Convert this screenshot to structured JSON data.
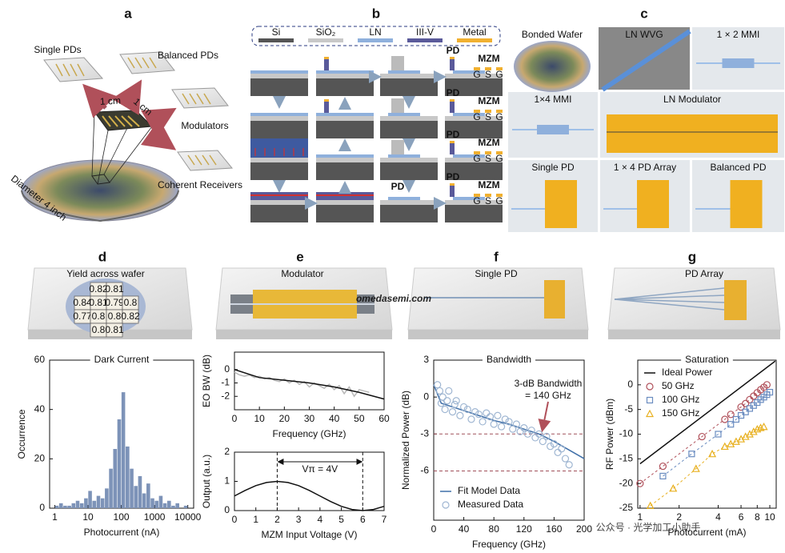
{
  "panel_labels": [
    "a",
    "b",
    "c",
    "d",
    "e",
    "f",
    "g"
  ],
  "a": {
    "labels": [
      "Single PDs",
      "Balanced PDs",
      "1 cm",
      "1 cm",
      "Modulators",
      "Coherent Receivers",
      "Diameter 4 inch"
    ]
  },
  "b": {
    "legend": [
      "Si",
      "SiO₂",
      "LN",
      "III-V",
      "Metal"
    ],
    "legend_colors": [
      "#555555",
      "#c8c8c8",
      "#8fb0dc",
      "#5a5a9a",
      "#f0b030"
    ],
    "device_labels": [
      "PD",
      "MZM"
    ],
    "electrode": [
      "G",
      "S",
      "G"
    ]
  },
  "c": {
    "tiles": [
      "Bonded Wafer",
      "LN WVG",
      "1 × 2 MMI",
      "1×4 MMI",
      "LN Modulator",
      "Single PD",
      "1 × 4 PD Array",
      "Balanced PD"
    ]
  },
  "d": {
    "title": "Yield across wafer",
    "yield": [
      0.82,
      0.81,
      0.84,
      0.81,
      0.79,
      0.8,
      0.77,
      0.8,
      0.8,
      0.82,
      0.8,
      0.81
    ]
  },
  "e": {
    "title": "Modulator"
  },
  "f": {
    "title": "Single PD"
  },
  "g": {
    "title": "PD Array"
  },
  "watermarks": [
    "omedasemi.com",
    "公众号 · 光学加工小助手"
  ],
  "chart_data": [
    {
      "type": "histogram",
      "title": "Dark Current",
      "x_label": "Photocurrent (nA)",
      "y_label": "Occurrence",
      "xscale": "log",
      "xlim": [
        0.7,
        15000
      ],
      "xticks": [
        1,
        10,
        100,
        1000,
        10000
      ],
      "ylim": [
        0,
        60
      ],
      "yticks": [
        0,
        20,
        40,
        60
      ],
      "color": "#7d93b8",
      "bins": [
        1,
        1.33,
        1.78,
        2.37,
        3.16,
        4.22,
        5.62,
        7.5,
        10,
        13.3,
        17.8,
        23.7,
        31.6,
        42.2,
        56.2,
        75,
        100,
        133,
        178,
        237,
        316,
        422,
        562,
        750,
        1000,
        1334,
        1778,
        2371,
        3162,
        4217,
        5623,
        7499,
        10000
      ],
      "values": [
        1,
        2,
        1,
        1,
        2,
        3,
        2,
        4,
        7,
        3,
        5,
        4,
        8,
        16,
        24,
        36,
        47,
        25,
        16,
        9,
        13,
        6,
        10,
        4,
        3,
        5,
        2,
        3,
        1,
        2,
        0,
        1
      ]
    },
    {
      "type": "line",
      "x_label": "Frequency (GHz)",
      "y_label": "EO BW (dB)",
      "xlim": [
        0,
        60
      ],
      "xticks": [
        0,
        10,
        20,
        30,
        40,
        50,
        60
      ],
      "ylim": [
        -3,
        1.3
      ],
      "yticks": [
        0,
        -1,
        -2
      ],
      "series": [
        {
          "color": "#b8b8b8",
          "x": [
            0,
            2,
            4,
            6,
            8,
            10,
            12,
            14,
            16,
            18,
            20,
            22,
            24,
            26,
            28,
            30,
            32,
            34,
            36,
            38,
            40,
            42,
            44,
            46,
            48,
            50,
            52,
            54
          ],
          "values": [
            -0.2,
            -0.4,
            -0.5,
            -0.4,
            -0.6,
            -0.5,
            -0.7,
            -0.6,
            -0.8,
            -0.9,
            -0.7,
            -1.0,
            -0.8,
            -1.1,
            -0.9,
            -1.3,
            -1.0,
            -1.2,
            -1.4,
            -1.1,
            -1.5,
            -1.2,
            -1.8,
            -1.3,
            -2.0,
            -1.5,
            -1.6,
            -1.7
          ]
        },
        {
          "color": "#111111",
          "x": [
            0,
            10,
            20,
            30,
            40,
            50,
            60
          ],
          "values": [
            0,
            -0.6,
            -0.8,
            -1.0,
            -1.3,
            -1.7,
            -2.2
          ]
        }
      ]
    },
    {
      "type": "line",
      "x_label": "MZM Input Voltage (V)",
      "y_label": "Output (a.u.)",
      "xlim": [
        0,
        7
      ],
      "xticks": [
        0,
        1,
        2,
        3,
        4,
        5,
        6,
        7
      ],
      "ylim": [
        0,
        2
      ],
      "yticks": [
        0,
        1,
        2
      ],
      "vlines": [
        2,
        6
      ],
      "annotation": [
        "Vπ = 4V"
      ],
      "series": [
        {
          "color": "#111111",
          "x": [
            0,
            0.5,
            1,
            1.5,
            2,
            2.5,
            3,
            3.5,
            4,
            4.5,
            5,
            5.5,
            6,
            6.5,
            7
          ],
          "values": [
            0.5,
            0.691,
            0.854,
            0.962,
            1,
            0.962,
            0.854,
            0.691,
            0.5,
            0.309,
            0.146,
            0.038,
            0,
            0.038,
            0.146
          ]
        }
      ]
    },
    {
      "type": "scatter",
      "title": "Bandwidth",
      "x_label": "Frequency (GHz)",
      "y_label": "Normalized Power (dB)",
      "xlim": [
        0,
        200
      ],
      "xticks": [
        0,
        40,
        80,
        120,
        160,
        200
      ],
      "ylim": [
        -10,
        3
      ],
      "yticks": [
        3,
        0,
        -3,
        -6
      ],
      "hlines": [
        -3,
        -6
      ],
      "annotation": [
        "3-dB Bandwidth",
        "= 140 GHz"
      ],
      "legend": "lower left",
      "series": [
        {
          "name": "Fit Model Data",
          "color": "#3f6fa8",
          "mode": "line",
          "x": [
            0,
            10,
            20,
            40,
            60,
            80,
            100,
            120,
            140,
            160,
            180,
            200
          ],
          "values": [
            1,
            -0.5,
            -0.7,
            -1.1,
            -1.5,
            -1.9,
            -2.2,
            -2.6,
            -3,
            -3.6,
            -4.3,
            -5
          ]
        },
        {
          "name": "Measured Data",
          "color": "#9fb6d2",
          "mode": "markers",
          "marker": "circle",
          "x": [
            5,
            8,
            10,
            12,
            15,
            18,
            20,
            25,
            28,
            30,
            35,
            40,
            45,
            50,
            55,
            60,
            65,
            70,
            75,
            80,
            85,
            90,
            95,
            100,
            105,
            110,
            115,
            120,
            125,
            130,
            135,
            140,
            145,
            150,
            155,
            160,
            165,
            170,
            175,
            180
          ],
          "values": [
            1,
            0.5,
            -0.5,
            0,
            -1,
            -0.3,
            0.5,
            -1.2,
            -0.6,
            -0.3,
            -1.5,
            -0.8,
            -1,
            -1.8,
            -1.2,
            -1.4,
            -2,
            -1.3,
            -1.6,
            -2.2,
            -1.5,
            -2.4,
            -1.8,
            -2,
            -2.6,
            -2.2,
            -2.8,
            -2.5,
            -3,
            -2.7,
            -3.3,
            -3,
            -3.6,
            -3.2,
            -4,
            -3.8,
            -4.5,
            -4.2,
            -5,
            -5.5
          ]
        }
      ]
    },
    {
      "type": "scatter",
      "title": "Saturation",
      "x_label": "Photocurrent (mA)",
      "y_label": "RF Power (dBm)",
      "xscale": "log",
      "xlim": [
        0.96,
        11.2
      ],
      "xticks": [
        1,
        2,
        4,
        6,
        8,
        10
      ],
      "ylim": [
        -25,
        5
      ],
      "yticks": [
        -25,
        -20,
        -15,
        -10,
        -5,
        0
      ],
      "legend": "upper left",
      "series": [
        {
          "name": "Ideal Power",
          "color": "#111111",
          "mode": "line",
          "x": [
            1,
            11
          ],
          "values": [
            -16,
            4.8
          ]
        },
        {
          "name": "50 GHz",
          "color": "#b0505a",
          "mode": "markers",
          "marker": "circle",
          "dashed": true,
          "x": [
            1,
            1.5,
            3,
            4.5,
            5,
            6,
            6.5,
            7,
            7.5,
            8,
            8.5,
            9,
            9.5
          ],
          "values": [
            -20,
            -16.5,
            -10.5,
            -7,
            -6,
            -4.5,
            -3.8,
            -3,
            -2.3,
            -1.6,
            -1,
            -0.5,
            0
          ]
        },
        {
          "name": "100 GHz",
          "color": "#6a8cc0",
          "mode": "markers",
          "marker": "square",
          "dashed": true,
          "x": [
            1.5,
            2.5,
            4,
            5,
            5.5,
            6,
            6.5,
            7,
            7.5,
            8,
            8.5,
            9,
            9.5,
            10
          ],
          "values": [
            -18.5,
            -14,
            -10,
            -8,
            -7,
            -6.2,
            -5.5,
            -4.8,
            -4.2,
            -3.6,
            -3,
            -2.5,
            -2,
            -1.5
          ]
        },
        {
          "name": "150 GHz",
          "color": "#e8b020",
          "mode": "markers",
          "marker": "triangle",
          "dashed": true,
          "x": [
            1.2,
            1.8,
            2.7,
            3.6,
            4.5,
            5,
            5.5,
            6,
            6.5,
            7,
            7.5,
            8,
            8.5,
            9
          ],
          "values": [
            -24.5,
            -21,
            -17,
            -14,
            -12.5,
            -12,
            -11.5,
            -11,
            -10.5,
            -10,
            -9.5,
            -9,
            -8.7,
            -8.5
          ]
        }
      ]
    }
  ]
}
